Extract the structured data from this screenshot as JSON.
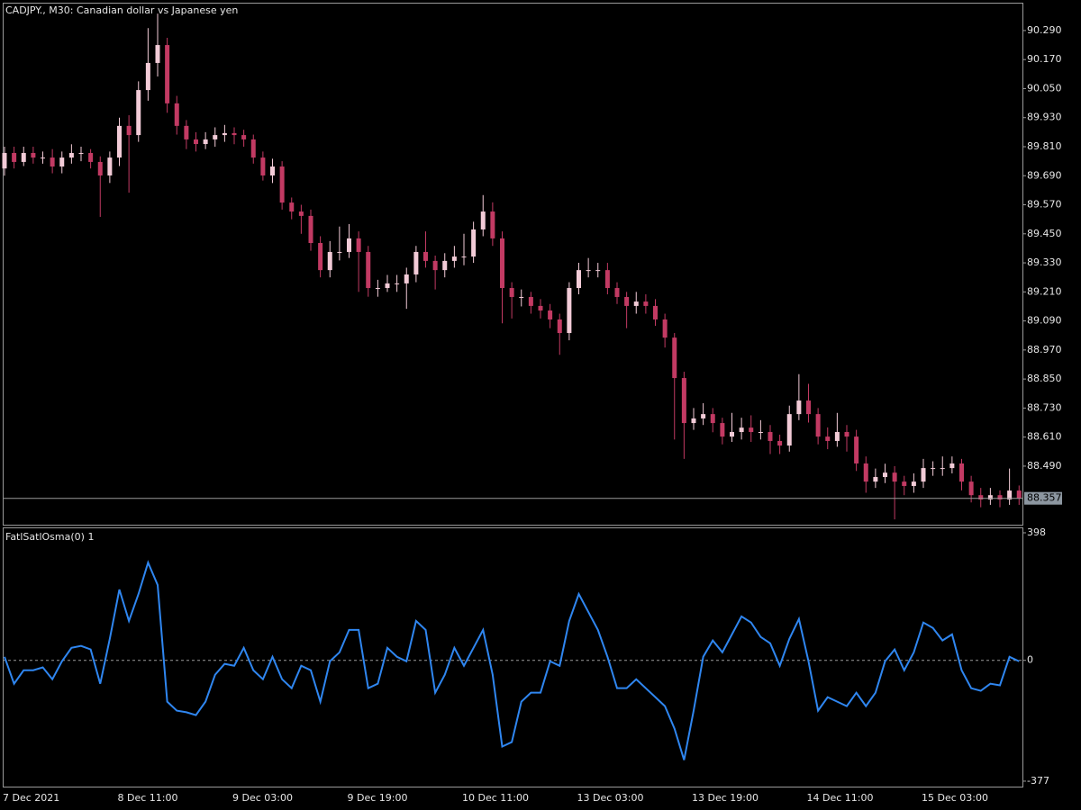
{
  "chart_data": [
    {
      "type": "candlestick",
      "title": "CADJPY., M30:  Canadian dollar vs Japanese yen",
      "up_color": "#f2cbd7",
      "down_color": "#c23a63",
      "categories": [
        "7 Dec 2021",
        null,
        null,
        null,
        null,
        null,
        null,
        null,
        null,
        null,
        null,
        null,
        "8 Dec 11:00",
        null,
        null,
        null,
        null,
        null,
        null,
        null,
        null,
        null,
        null,
        null,
        "9 Dec 03:00",
        null,
        null,
        null,
        null,
        null,
        null,
        null,
        null,
        null,
        null,
        null,
        "9 Dec 19:00",
        null,
        null,
        null,
        null,
        null,
        null,
        null,
        null,
        null,
        null,
        null,
        "10 Dec 11:00",
        null,
        null,
        null,
        null,
        null,
        null,
        null,
        null,
        null,
        null,
        null,
        "13 Dec 03:00",
        null,
        null,
        null,
        null,
        null,
        null,
        null,
        null,
        null,
        null,
        null,
        "13 Dec 19:00",
        null,
        null,
        null,
        null,
        null,
        null,
        null,
        null,
        null,
        null,
        null,
        "14 Dec 11:00",
        null,
        null,
        null,
        null,
        null,
        null,
        null,
        null,
        null,
        null,
        null,
        "15 Dec 03:00",
        null,
        null,
        null,
        null,
        null,
        null,
        null,
        null,
        null,
        null
      ],
      "open": [
        89.72,
        89.784,
        89.747,
        89.784,
        89.765,
        89.765,
        89.728,
        89.765,
        89.784,
        89.784,
        89.747,
        89.691,
        89.765,
        89.896,
        89.858,
        90.044,
        90.156,
        90.23,
        89.989,
        89.896,
        89.84,
        89.821,
        89.84,
        89.858,
        89.866,
        89.858,
        89.84,
        89.765,
        89.691,
        89.728,
        89.579,
        89.542,
        89.524,
        89.412,
        89.3,
        89.375,
        89.375,
        89.431,
        89.375,
        89.226,
        89.226,
        89.245,
        89.245,
        89.282,
        89.375,
        89.338,
        89.3,
        89.338,
        89.356,
        89.356,
        89.468,
        89.542,
        89.431,
        89.226,
        89.189,
        89.189,
        89.152,
        89.133,
        89.096,
        89.04,
        89.226,
        89.3,
        89.3,
        89.3,
        89.226,
        89.189,
        89.152,
        89.17,
        89.152,
        89.096,
        89.021,
        88.854,
        88.668,
        88.687,
        88.705,
        88.668,
        88.612,
        88.631,
        88.649,
        88.631,
        88.631,
        88.594,
        88.575,
        88.705,
        88.761,
        88.705,
        88.612,
        88.594,
        88.631,
        88.612,
        88.501,
        88.426,
        88.445,
        88.463,
        88.426,
        88.408,
        88.426,
        88.482,
        88.482,
        88.482,
        88.501,
        88.426,
        88.37,
        88.352,
        88.37,
        88.352,
        88.389
      ],
      "high": [
        89.81,
        89.81,
        89.81,
        89.81,
        89.79,
        89.8,
        89.79,
        89.82,
        89.81,
        89.8,
        89.77,
        89.79,
        89.93,
        89.94,
        90.08,
        90.3,
        90.36,
        90.26,
        90.02,
        89.92,
        89.87,
        89.87,
        89.89,
        89.9,
        89.89,
        89.88,
        89.86,
        89.79,
        89.76,
        89.75,
        89.6,
        89.57,
        89.55,
        89.44,
        89.42,
        89.48,
        89.49,
        89.46,
        89.4,
        89.26,
        89.28,
        89.28,
        89.31,
        89.4,
        89.46,
        89.36,
        89.37,
        89.4,
        89.45,
        89.5,
        89.61,
        89.58,
        89.46,
        89.25,
        89.22,
        89.21,
        89.18,
        89.16,
        89.12,
        89.25,
        89.33,
        89.35,
        89.33,
        89.33,
        89.25,
        89.21,
        89.21,
        89.2,
        89.18,
        89.12,
        89.04,
        88.88,
        88.73,
        88.75,
        88.73,
        88.69,
        88.71,
        88.69,
        88.7,
        88.68,
        88.66,
        88.62,
        88.74,
        88.87,
        88.83,
        88.73,
        88.65,
        88.71,
        88.66,
        88.64,
        88.53,
        88.48,
        88.5,
        88.49,
        88.45,
        88.46,
        88.52,
        88.51,
        88.53,
        88.53,
        88.52,
        88.45,
        88.4,
        88.4,
        88.39,
        88.48,
        88.41
      ],
      "low": [
        89.69,
        89.72,
        89.73,
        89.74,
        89.74,
        89.7,
        89.7,
        89.74,
        89.75,
        89.72,
        89.52,
        89.66,
        89.73,
        89.62,
        89.83,
        90.0,
        90.1,
        89.95,
        89.86,
        89.8,
        89.79,
        89.8,
        89.81,
        89.83,
        89.82,
        89.81,
        89.74,
        89.67,
        89.66,
        89.55,
        89.51,
        89.45,
        89.38,
        89.27,
        89.27,
        89.34,
        89.35,
        89.21,
        89.19,
        89.19,
        89.21,
        89.21,
        89.14,
        89.25,
        89.31,
        89.22,
        89.27,
        89.31,
        89.32,
        89.33,
        89.44,
        89.4,
        89.08,
        89.1,
        89.15,
        89.12,
        89.1,
        89.06,
        88.95,
        89.01,
        89.2,
        89.27,
        89.27,
        89.2,
        89.16,
        89.06,
        89.12,
        89.12,
        89.07,
        88.98,
        88.6,
        88.52,
        88.64,
        88.66,
        88.63,
        88.58,
        88.59,
        88.6,
        88.59,
        88.6,
        88.54,
        88.54,
        88.55,
        88.68,
        88.67,
        88.58,
        88.56,
        88.57,
        88.55,
        88.47,
        88.38,
        88.4,
        88.42,
        88.27,
        88.37,
        88.38,
        88.4,
        88.45,
        88.45,
        88.46,
        88.39,
        88.34,
        88.32,
        88.33,
        88.32,
        88.33,
        88.33
      ],
      "close": [
        89.784,
        89.747,
        89.784,
        89.765,
        89.765,
        89.728,
        89.765,
        89.784,
        89.784,
        89.747,
        89.691,
        89.765,
        89.896,
        89.858,
        90.044,
        90.156,
        90.23,
        89.989,
        89.896,
        89.84,
        89.821,
        89.84,
        89.858,
        89.866,
        89.858,
        89.84,
        89.765,
        89.691,
        89.728,
        89.579,
        89.542,
        89.524,
        89.412,
        89.3,
        89.375,
        89.375,
        89.431,
        89.375,
        89.226,
        89.226,
        89.245,
        89.245,
        89.282,
        89.375,
        89.338,
        89.3,
        89.338,
        89.356,
        89.356,
        89.468,
        89.542,
        89.431,
        89.226,
        89.189,
        89.189,
        89.152,
        89.133,
        89.096,
        89.04,
        89.226,
        89.3,
        89.3,
        89.3,
        89.226,
        89.189,
        89.152,
        89.17,
        89.152,
        89.096,
        89.021,
        88.854,
        88.668,
        88.687,
        88.705,
        88.668,
        88.612,
        88.631,
        88.649,
        88.631,
        88.631,
        88.594,
        88.575,
        88.705,
        88.761,
        88.705,
        88.612,
        88.594,
        88.631,
        88.612,
        88.501,
        88.426,
        88.445,
        88.463,
        88.426,
        88.408,
        88.426,
        88.482,
        88.482,
        88.482,
        88.501,
        88.426,
        88.37,
        88.352,
        88.37,
        88.352,
        88.389,
        88.357
      ],
      "last_price": 88.357,
      "ylim": [
        88.248,
        90.405
      ],
      "yticks": [
        {
          "value": 88.49,
          "label": "88.490"
        },
        {
          "value": 88.61,
          "label": "88.610"
        },
        {
          "value": 88.73,
          "label": "88.730"
        },
        {
          "value": 88.85,
          "label": "88.850"
        },
        {
          "value": 88.97,
          "label": "88.970"
        },
        {
          "value": 89.09,
          "label": "89.090"
        },
        {
          "value": 89.21,
          "label": "89.210"
        },
        {
          "value": 89.33,
          "label": "89.330"
        },
        {
          "value": 89.45,
          "label": "89.450"
        },
        {
          "value": 89.57,
          "label": "89.570"
        },
        {
          "value": 89.69,
          "label": "89.690"
        },
        {
          "value": 89.81,
          "label": "89.810"
        },
        {
          "value": 89.93,
          "label": "89.930"
        },
        {
          "value": 90.05,
          "label": "90.050"
        },
        {
          "value": 90.17,
          "label": "90.170"
        },
        {
          "value": 90.29,
          "label": "90.290"
        }
      ]
    },
    {
      "type": "line",
      "title": "FatlSatlOsma(0) 1",
      "color": "#2f86f0",
      "values": [
        11,
        -73,
        -31,
        -31,
        -22,
        -59,
        -3,
        39,
        45,
        34,
        -73,
        67,
        221,
        123,
        207,
        305,
        235,
        -129,
        -157,
        -162,
        -171,
        -129,
        -45,
        -11,
        -17,
        39,
        -31,
        -59,
        11,
        -59,
        -87,
        -17,
        -31,
        -129,
        -3,
        25,
        95,
        95,
        -87,
        -73,
        39,
        11,
        -3,
        123,
        95,
        -101,
        -45,
        39,
        -17,
        39,
        95,
        -45,
        -269,
        -255,
        -129,
        -101,
        -101,
        -3,
        -17,
        123,
        207,
        151,
        95,
        11,
        -87,
        -87,
        -59,
        -87,
        -115,
        -143,
        -213,
        -311,
        -157,
        11,
        62,
        25,
        81,
        137,
        118,
        73,
        53,
        -17,
        67,
        129,
        -3,
        -157,
        -115,
        -129,
        -143,
        -101,
        -143,
        -101,
        -3,
        34,
        -31,
        25,
        118,
        101,
        62,
        81,
        -31,
        -87,
        -95,
        -73,
        -78,
        11,
        -3
      ],
      "ylim": [
        -394,
        412
      ],
      "yticks": [
        398,
        0,
        -377
      ],
      "zero_line": true
    }
  ]
}
